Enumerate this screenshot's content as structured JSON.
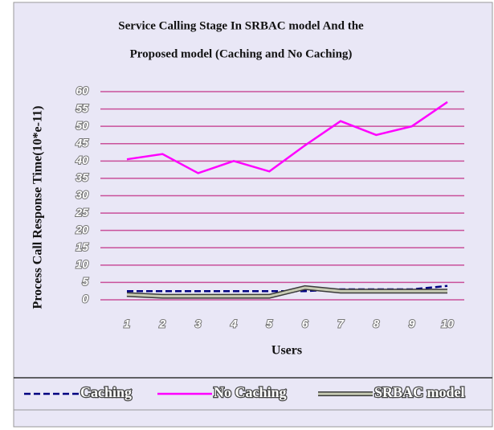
{
  "chart_data": {
    "type": "line",
    "title": [
      "Service Calling Stage In SRBAC model And the",
      "Proposed model (Caching and No Caching)"
    ],
    "x_label": "Users",
    "y_label": "Process Call Response Time(10*e-11)",
    "categories": [
      "1",
      "2",
      "3",
      "4",
      "5",
      "6",
      "7",
      "8",
      "9",
      "10"
    ],
    "series": [
      {
        "name": "Caching",
        "color": "#000080",
        "dashed": true,
        "values": [
          2.5,
          2.5,
          2.5,
          2.5,
          2.5,
          2.5,
          3,
          3,
          3,
          4
        ]
      },
      {
        "name": "No Caching",
        "color": "#ff00ff",
        "values": [
          40.5,
          42,
          36.5,
          40,
          37,
          44.5,
          51.5,
          47.5,
          50,
          57
        ]
      },
      {
        "name": "SRBAC model",
        "color": "#c8ccb4",
        "outline": "#3a3a3a",
        "values": [
          1.5,
          1,
          1,
          1,
          1,
          3.5,
          2.5,
          2.5,
          2.5,
          2.5
        ]
      }
    ],
    "ylim": [
      0,
      60
    ],
    "yticks": [
      0,
      5,
      10,
      15,
      20,
      25,
      30,
      35,
      40,
      45,
      50,
      55,
      60
    ],
    "grid": true,
    "legend": "bottom"
  }
}
